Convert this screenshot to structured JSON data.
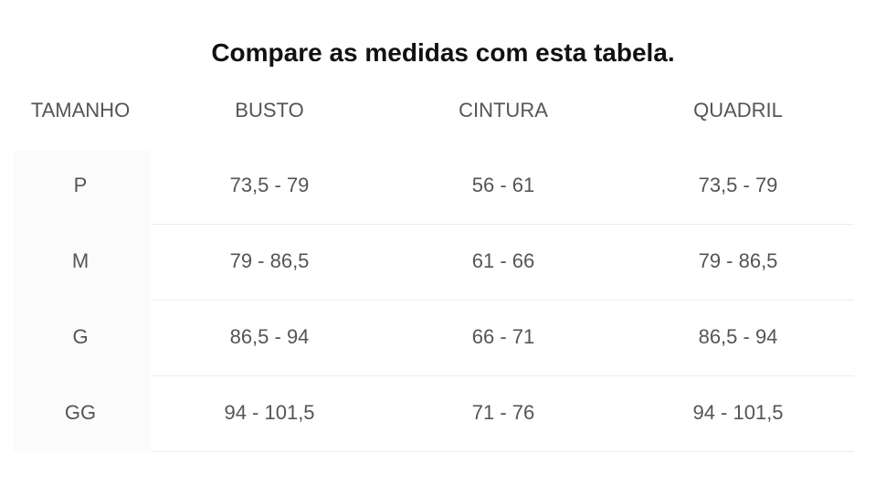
{
  "title": "Compare as medidas com esta tabela.",
  "table": {
    "header": [
      "TAMANHO",
      "BUSTO",
      "CINTURA",
      "QUADRIL"
    ],
    "rows": [
      [
        "P",
        "73,5 - 79",
        "56 - 61",
        "73,5 - 79"
      ],
      [
        "M",
        "79 - 86,5",
        "61 - 66",
        "79 - 86,5"
      ],
      [
        "G",
        "86,5 - 94",
        "66 - 71",
        "86,5 - 94"
      ],
      [
        "GG",
        "94 - 101,5",
        "71 - 76",
        "94 - 101,5"
      ]
    ]
  }
}
